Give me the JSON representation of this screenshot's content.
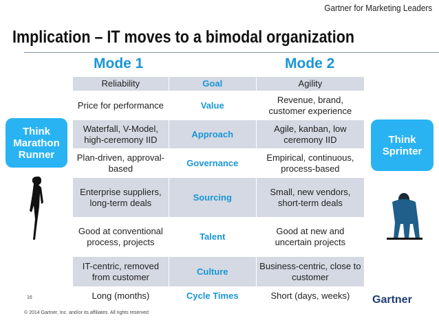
{
  "header": {
    "brand": "Gartner for Marketing Leaders",
    "title": "Implication  – IT moves to a bimodal organization"
  },
  "modes": {
    "mode1": "Mode 1",
    "mode2": "Mode 2"
  },
  "rows": [
    {
      "mode1": "Reliability",
      "key": "Goal",
      "mode2": "Agility"
    },
    {
      "mode1": "Price for performance",
      "key": "Value",
      "mode2": "Revenue, brand, customer experience"
    },
    {
      "mode1": "Waterfall, V-Model, high-ceremony IID",
      "key": "Approach",
      "mode2": "Agile, kanban, low ceremony IID"
    },
    {
      "mode1": "Plan-driven, approval-based",
      "key": "Governance",
      "mode2": "Empirical, continuous, process-based"
    },
    {
      "mode1": "Enterprise suppliers, long-term deals",
      "key": "Sourcing",
      "mode2": "Small, new vendors, short-term deals"
    },
    {
      "mode1": "Good at conventional process, projects",
      "key": "Talent",
      "mode2": "Good at new and uncertain projects"
    },
    {
      "mode1": "IT-centric, removed from customer",
      "key": "Culture",
      "mode2": "Business-centric, close to customer"
    },
    {
      "mode1": "Long (months)",
      "key": "Cycle Times",
      "mode2": "Short (days, weeks)"
    }
  ],
  "callouts": {
    "left": "Think Marathon Runner",
    "right": "Think Sprinter"
  },
  "footer": {
    "page": "16",
    "copyright": "© 2014 Gartner, Inc. and/or its affiliates. All rights reserved",
    "logo": "Gartner"
  },
  "colors": {
    "accent": "#1a96d4",
    "callout": "#29b3f3",
    "shade": "#d4d9e3",
    "logo": "#1f3d73"
  }
}
